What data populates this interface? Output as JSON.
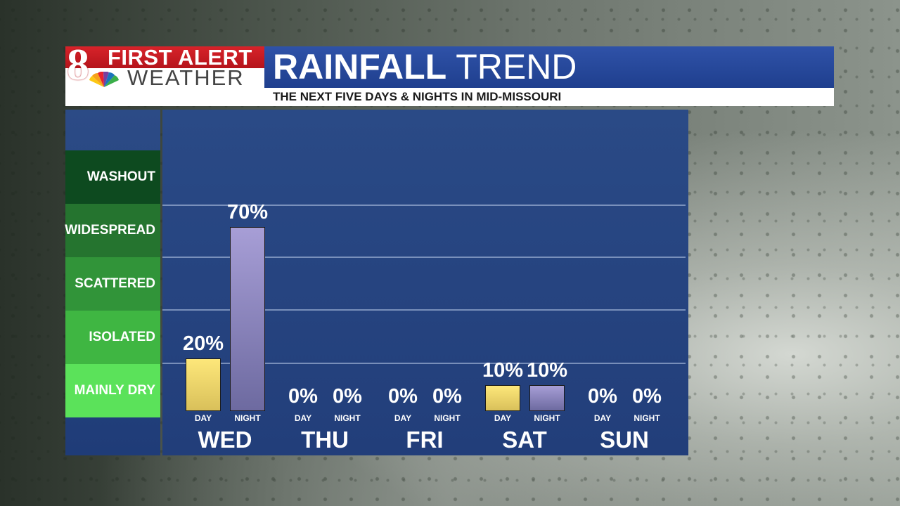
{
  "brand": {
    "logo_number": "8",
    "logo_line1": "FIRST ALERT",
    "logo_line2": "WEATHER",
    "colors": {
      "red": "#d8232a",
      "blue": "#2f52a8"
    }
  },
  "header": {
    "title_bold": "RAINFALL",
    "title_light": "TREND",
    "subtitle": "THE NEXT FIVE DAYS & NIGHTS IN MID-MISSOURI"
  },
  "legend": {
    "levels": [
      {
        "label": "WASHOUT",
        "color": "#0d4a1f"
      },
      {
        "label": "WIDESPREAD",
        "color": "#25742f"
      },
      {
        "label": "SCATTERED",
        "color": "#319439"
      },
      {
        "label": "ISOLATED",
        "color": "#3fb642"
      },
      {
        "label": "MAINLY DRY",
        "color": "#5be25a"
      }
    ]
  },
  "chart_data": {
    "type": "bar",
    "title": "RAINFALL TREND",
    "subtitle": "THE NEXT FIVE DAYS & NIGHTS IN MID-MISSOURI",
    "unit": "%",
    "ylim": [
      0,
      100
    ],
    "grid": true,
    "categories": [
      "WED",
      "THU",
      "FRI",
      "SAT",
      "SUN"
    ],
    "sub_categories": [
      "DAY",
      "NIGHT"
    ],
    "series": [
      {
        "name": "DAY",
        "color": "#fde77a",
        "values": [
          20,
          0,
          0,
          10,
          0
        ]
      },
      {
        "name": "NIGHT",
        "color": "#a79ed6",
        "values": [
          70,
          0,
          0,
          10,
          0
        ]
      }
    ]
  }
}
